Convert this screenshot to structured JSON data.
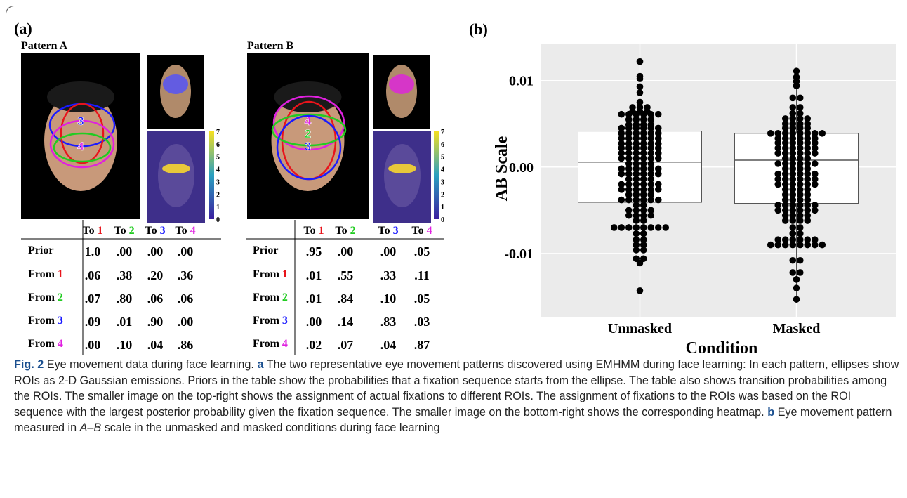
{
  "panel_a": {
    "label": "(a)",
    "roi_colors": [
      "#e8141b",
      "#22cc22",
      "#1a1aff",
      "#e020e0"
    ],
    "to_label": "To",
    "from_label": "From",
    "prior_label": "Prior",
    "roi_numbers": [
      "1",
      "2",
      "3",
      "4"
    ],
    "colorbar_ticks": [
      0,
      1,
      2,
      3,
      4,
      5,
      6,
      7
    ],
    "patterns": [
      {
        "name": "Pattern A",
        "face_labels": [
          "3",
          "4"
        ],
        "rows": [
          [
            "1.0",
            ".00",
            ".00",
            ".00"
          ],
          [
            ".06",
            ".38",
            ".20",
            ".36"
          ],
          [
            ".07",
            ".80",
            ".06",
            ".06"
          ],
          [
            ".09",
            ".01",
            ".90",
            ".00"
          ],
          [
            ".00",
            ".10",
            ".04",
            ".86"
          ]
        ]
      },
      {
        "name": "Pattern B",
        "face_labels": [
          "4",
          "2",
          "3"
        ],
        "rows": [
          [
            ".95",
            ".00",
            ".00",
            ".05"
          ],
          [
            ".01",
            ".55",
            ".33",
            ".11"
          ],
          [
            ".01",
            ".84",
            ".10",
            ".05"
          ],
          [
            ".00",
            ".14",
            ".83",
            ".03"
          ],
          [
            ".02",
            ".07",
            ".04",
            ".87"
          ]
        ]
      }
    ]
  },
  "chart_data": {
    "type": "box",
    "panel_label": "(b)",
    "y_label": "AB Scale",
    "x_label": "Condition",
    "categories": [
      "Unmasked",
      "Masked"
    ],
    "ylim": [
      -0.0174,
      0.0142
    ],
    "yticks": [
      0.01,
      {
        "value": 0,
        "label": "0.00"
      },
      -0.01
    ],
    "grid": true,
    "box_color": "#ffffff",
    "point_color": "#000000",
    "boxes": [
      {
        "whisker_low": -0.0143,
        "q1": -0.00408,
        "median": 0.00057,
        "q3": 0.00416,
        "whisker_high": 0.0122
      },
      {
        "whisker_low": -0.0153,
        "q1": -0.0042,
        "median": 0.0008,
        "q3": 0.0039,
        "whisker_high": 0.0111
      }
    ],
    "points": [
      [
        0.0122,
        0.0105,
        0.0102,
        0.0093,
        0.0086,
        0.0075,
        0.0069,
        0.0069,
        0.0069,
        0.0064,
        0.0064,
        0.0064,
        0.0061,
        0.0061,
        0.0061,
        0.0061,
        0.0061,
        0.0061,
        0.0055,
        0.0055,
        0.0055,
        0.0055,
        0.0049,
        0.0049,
        0.0049,
        0.0049,
        0.0045,
        0.0045,
        0.0045,
        0.0045,
        0.0045,
        0.0045,
        0.0039,
        0.0039,
        0.0039,
        0.0039,
        0.0039,
        0.0039,
        0.0033,
        0.0033,
        0.0033,
        0.0033,
        0.0033,
        0.0033,
        0.0027,
        0.0027,
        0.0027,
        0.0027,
        0.0027,
        0.0027,
        0.0022,
        0.0022,
        0.0022,
        0.0022,
        0.0022,
        0.0022,
        0.0016,
        0.0016,
        0.0016,
        0.0016,
        0.0016,
        0.0016,
        0.001,
        0.001,
        0.001,
        0.001,
        0.001,
        0.001,
        0.0004,
        0.0004,
        0.0004,
        0.0004,
        -0.0002,
        -0.0002,
        -0.0002,
        -0.0002,
        -0.0002,
        -0.0002,
        -0.0008,
        -0.0008,
        -0.0008,
        -0.0008,
        -0.0008,
        -0.0008,
        -0.0014,
        -0.0014,
        -0.0014,
        -0.0014,
        -0.002,
        -0.002,
        -0.002,
        -0.002,
        -0.002,
        -0.002,
        -0.0026,
        -0.0026,
        -0.0026,
        -0.0026,
        -0.0026,
        -0.0026,
        -0.0032,
        -0.0032,
        -0.0032,
        -0.0032,
        -0.0038,
        -0.0038,
        -0.0038,
        -0.0038,
        -0.0038,
        -0.0038,
        -0.0044,
        -0.0044,
        -0.005,
        -0.005,
        -0.005,
        -0.005,
        -0.0056,
        -0.0056,
        -0.0056,
        -0.0056,
        -0.0062,
        -0.0062,
        -0.007,
        -0.007,
        -0.007,
        -0.007,
        -0.007,
        -0.007,
        -0.007,
        -0.007,
        -0.0077,
        -0.0077,
        -0.0084,
        -0.0084,
        -0.009,
        -0.009,
        -0.0096,
        -0.0096,
        -0.0106,
        -0.0106,
        -0.0111,
        -0.0143
      ],
      [
        0.0111,
        0.0104,
        0.0099,
        0.0094,
        0.008,
        0.008,
        0.0069,
        0.0069,
        0.0062,
        0.0062,
        0.0056,
        0.0056,
        0.0056,
        0.0056,
        0.005,
        0.005,
        0.005,
        0.005,
        0.0045,
        0.0045,
        0.0045,
        0.0045,
        0.0039,
        0.0039,
        0.0039,
        0.0039,
        0.0039,
        0.0039,
        0.0039,
        0.0039,
        0.0033,
        0.0033,
        0.0033,
        0.0033,
        0.0033,
        0.0033,
        0.0028,
        0.0028,
        0.0028,
        0.0028,
        0.0028,
        0.0028,
        0.0022,
        0.0022,
        0.0022,
        0.0022,
        0.0022,
        0.0022,
        0.0016,
        0.0016,
        0.0016,
        0.0016,
        0.0016,
        0.0016,
        0.001,
        0.001,
        0.001,
        0.001,
        0.0004,
        0.0004,
        0.0004,
        0.0004,
        0.0004,
        0.0004,
        -0.0002,
        -0.0002,
        -0.0002,
        -0.0002,
        -0.0008,
        -0.0008,
        -0.0008,
        -0.0008,
        -0.0008,
        -0.0008,
        -0.0014,
        -0.0014,
        -0.0014,
        -0.0014,
        -0.0014,
        -0.0014,
        -0.002,
        -0.002,
        -0.002,
        -0.002,
        -0.002,
        -0.002,
        -0.0026,
        -0.0026,
        -0.0026,
        -0.0026,
        -0.0032,
        -0.0032,
        -0.0032,
        -0.0032,
        -0.0038,
        -0.0038,
        -0.0038,
        -0.0038,
        -0.0044,
        -0.0044,
        -0.0044,
        -0.0044,
        -0.0044,
        -0.0044,
        -0.005,
        -0.005,
        -0.005,
        -0.005,
        -0.005,
        -0.005,
        -0.0056,
        -0.0056,
        -0.0056,
        -0.0056,
        -0.0062,
        -0.0062,
        -0.0062,
        -0.0062,
        -0.007,
        -0.007,
        -0.0077,
        -0.0077,
        -0.0084,
        -0.0084,
        -0.0084,
        -0.0084,
        -0.0084,
        -0.0084,
        -0.009,
        -0.009,
        -0.009,
        -0.009,
        -0.009,
        -0.009,
        -0.009,
        -0.009,
        -0.0108,
        -0.0108,
        -0.0122,
        -0.0122,
        -0.013,
        -0.014,
        -0.0153
      ]
    ]
  },
  "caption": {
    "label": "Fig. 2",
    "title": "Eye movement data during face learning.",
    "part_a": "a",
    "text_a": "The two representative eye movement patterns discovered using EMHMM during face learning: In each pattern, ellipses show ROIs as 2-D Gaussian emissions. Priors in the table show the probabilities that a fixation sequence starts from the ellipse. The table also shows transition probabilities among the ROIs. The smaller image on the top-right shows the assignment of actual fixations to different ROIs. The assignment of fixations to the ROIs was based on the ROI sequence with the largest posterior probability given the fixation sequence. The smaller image on the bottom-right shows the corresponding heatmap.",
    "part_b": "b",
    "text_b_1": "Eye movement pattern measured in",
    "text_b_italic": "A–B",
    "text_b_2": "scale in the unmasked and masked conditions during face learning"
  }
}
